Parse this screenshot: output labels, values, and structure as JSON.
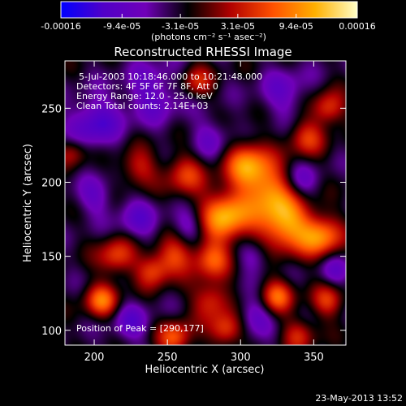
{
  "chart_data": {
    "type": "heatmap",
    "title": "Reconstructed RHESSI Image",
    "xlabel": "Heliocentric X (arcsec)",
    "ylabel": "Heliocentric Y (arcsec)",
    "xlim": [
      180,
      372
    ],
    "ylim": [
      90,
      282
    ],
    "x_ticks": [
      200,
      250,
      300,
      350
    ],
    "y_ticks": [
      100,
      150,
      200,
      250
    ],
    "colorbar": {
      "range": [
        -0.00016,
        0.00016
      ],
      "tick_values": [
        -0.00016,
        -9.4e-05,
        -3.1e-05,
        3.1e-05,
        9.4e-05,
        0.00016
      ],
      "tick_labels": [
        "-0.00016",
        "-9.4e-05",
        "-3.1e-05",
        "3.1e-05",
        "9.4e-05",
        "0.00016"
      ],
      "units_label": "(photons cm⁻² s⁻¹ asec⁻²)",
      "colormap": [
        "#0000ff",
        "#5000c8",
        "#7000b8",
        "#000000",
        "#b00000",
        "#ff5000",
        "#ffb000",
        "#ffffc8"
      ]
    },
    "info_lines": [
      "5-Jul-2003 10:18:46.000 to 10:21:48.000",
      "Detectors: 4F 5F 6F 7F 8F, Att 0",
      "Energy Range: 12.0 - 25.0 keV",
      "Clean    Total counts: 2.14E+03"
    ],
    "peak_label": "Position of Peak = [290,177]",
    "peak": [
      290,
      177
    ],
    "footer_date": "23-May-2013 13:52",
    "blobs": [
      {
        "x": 290,
        "y": 177,
        "amp": 0.00015,
        "sigma": 12
      },
      {
        "x": 330,
        "y": 172,
        "amp": 0.00014,
        "sigma": 13
      },
      {
        "x": 355,
        "y": 163,
        "amp": 0.00012,
        "sigma": 10
      },
      {
        "x": 305,
        "y": 212,
        "amp": 0.000125,
        "sigma": 11
      },
      {
        "x": 320,
        "y": 195,
        "amp": 0.00011,
        "sigma": 12
      },
      {
        "x": 262,
        "y": 205,
        "amp": 8e-05,
        "sigma": 10
      },
      {
        "x": 230,
        "y": 210,
        "amp": 7e-05,
        "sigma": 9
      },
      {
        "x": 280,
        "y": 148,
        "amp": 0.0001,
        "sigma": 9
      },
      {
        "x": 255,
        "y": 150,
        "amp": 8.5e-05,
        "sigma": 9
      },
      {
        "x": 215,
        "y": 150,
        "amp": 9e-05,
        "sigma": 9
      },
      {
        "x": 240,
        "y": 140,
        "amp": 8.5e-05,
        "sigma": 8
      },
      {
        "x": 205,
        "y": 120,
        "amp": 0.00011,
        "sigma": 8
      },
      {
        "x": 280,
        "y": 120,
        "amp": 8.5e-05,
        "sigma": 9
      },
      {
        "x": 325,
        "y": 123,
        "amp": 0.000105,
        "sigma": 8
      },
      {
        "x": 360,
        "y": 120,
        "amp": 8e-05,
        "sigma": 8
      },
      {
        "x": 255,
        "y": 95,
        "amp": 0.0001,
        "sigma": 8
      },
      {
        "x": 290,
        "y": 100,
        "amp": 9e-05,
        "sigma": 8
      },
      {
        "x": 340,
        "y": 97,
        "amp": 7e-05,
        "sigma": 8
      },
      {
        "x": 345,
        "y": 230,
        "amp": 8e-05,
        "sigma": 9
      },
      {
        "x": 360,
        "y": 250,
        "amp": 9e-05,
        "sigma": 8
      },
      {
        "x": 270,
        "y": 268,
        "amp": 7e-05,
        "sigma": 8
      },
      {
        "x": 185,
        "y": 220,
        "amp": 6e-05,
        "sigma": 7
      },
      {
        "x": 200,
        "y": 240,
        "amp": -8e-05,
        "sigma": 12
      },
      {
        "x": 240,
        "y": 260,
        "amp": -6e-05,
        "sigma": 14
      },
      {
        "x": 330,
        "y": 260,
        "amp": -5e-05,
        "sigma": 12
      },
      {
        "x": 230,
        "y": 175,
        "amp": -5.5e-05,
        "sigma": 10
      },
      {
        "x": 265,
        "y": 170,
        "amp": -5e-05,
        "sigma": 8
      },
      {
        "x": 310,
        "y": 150,
        "amp": -5e-05,
        "sigma": 8
      },
      {
        "x": 340,
        "y": 200,
        "amp": -5.5e-05,
        "sigma": 9
      },
      {
        "x": 280,
        "y": 230,
        "amp": -4.5e-05,
        "sigma": 10
      },
      {
        "x": 225,
        "y": 105,
        "amp": -6e-05,
        "sigma": 9
      },
      {
        "x": 310,
        "y": 110,
        "amp": -5.5e-05,
        "sigma": 9
      },
      {
        "x": 365,
        "y": 140,
        "amp": -5e-05,
        "sigma": 8
      },
      {
        "x": 200,
        "y": 190,
        "amp": -5e-05,
        "sigma": 9
      }
    ]
  }
}
